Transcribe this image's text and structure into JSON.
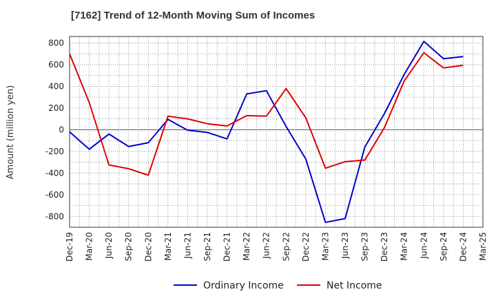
{
  "chart_data": {
    "type": "line",
    "title": "[7162]  Trend of 12-Month Moving Sum of Incomes",
    "xlabel": "",
    "ylabel": "Amount (million yen)",
    "ylim": [
      -900,
      860
    ],
    "yticks": [
      800,
      600,
      400,
      200,
      0,
      -200,
      -400,
      -600,
      -800
    ],
    "categories": [
      "Dec-19",
      "Mar-20",
      "Jun-20",
      "Sep-20",
      "Dec-20",
      "Mar-21",
      "Jun-21",
      "Sep-21",
      "Dec-21",
      "Mar-22",
      "Jun-22",
      "Sep-22",
      "Dec-22",
      "Mar-23",
      "Jun-23",
      "Sep-23",
      "Dec-23",
      "Mar-24",
      "Jun-24",
      "Sep-24",
      "Dec-24",
      "Mar-25"
    ],
    "series": [
      {
        "name": "Ordinary Income",
        "color": "#0000cc",
        "values": [
          -20,
          -180,
          -40,
          -155,
          -120,
          95,
          -5,
          -25,
          -85,
          330,
          360,
          30,
          -270,
          -855,
          -820,
          -160,
          150,
          510,
          815,
          655,
          675,
          null
        ]
      },
      {
        "name": "Net Income",
        "color": "#dd0000",
        "values": [
          700,
          250,
          -325,
          -360,
          -420,
          125,
          100,
          55,
          35,
          130,
          125,
          380,
          110,
          -355,
          -295,
          -280,
          20,
          450,
          710,
          570,
          595,
          null
        ]
      }
    ],
    "grid": true,
    "legend_position": "bottom"
  }
}
